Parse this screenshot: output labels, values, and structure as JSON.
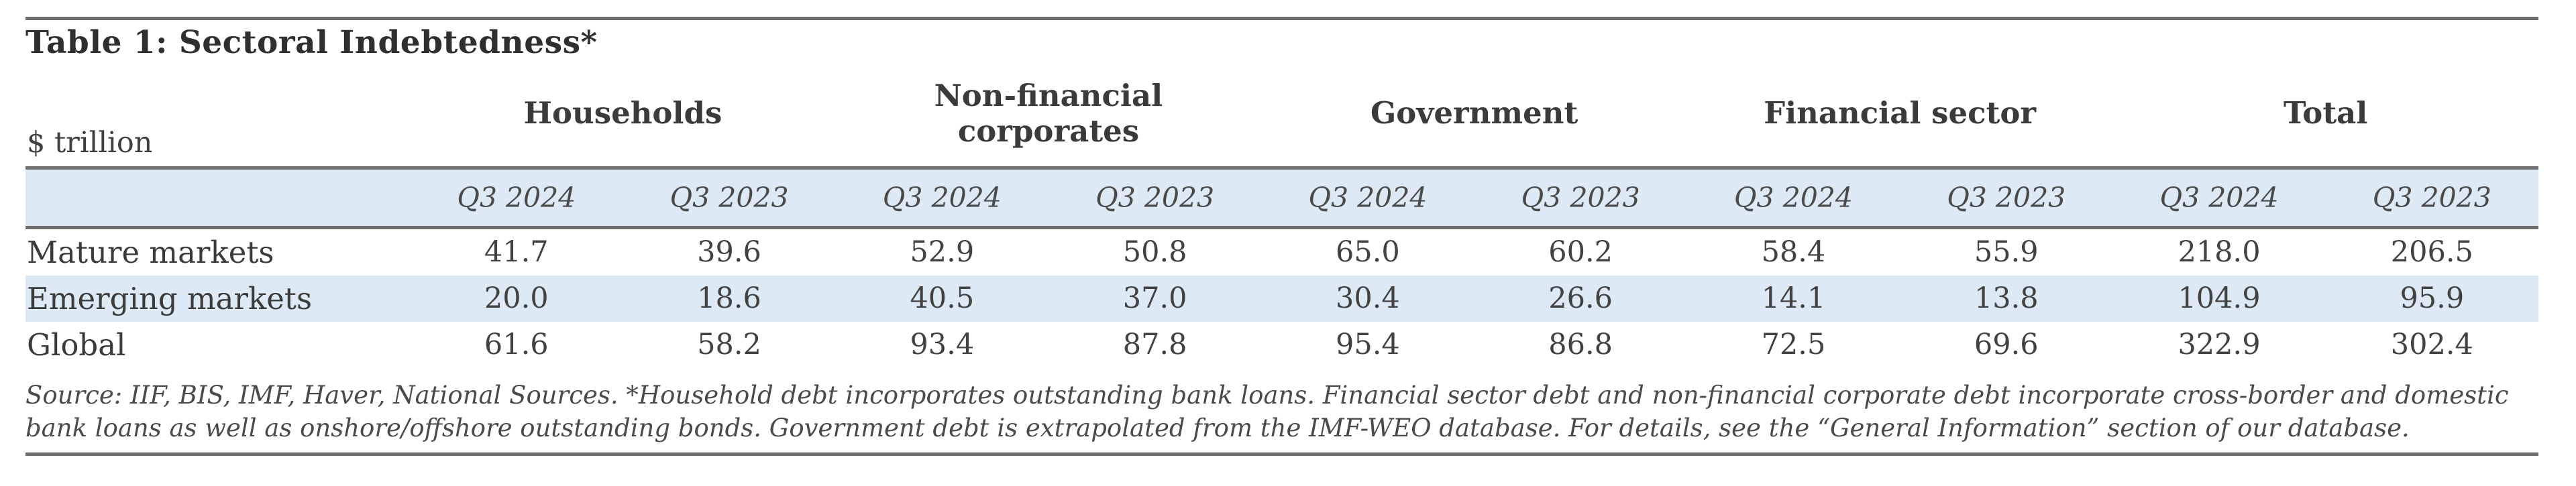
{
  "title": "Table 1: Sectoral Indebtedness*",
  "unit_label": "$ trillion",
  "column_groups": [
    "Households",
    "Non-financial corporates",
    "Government",
    "Financial sector",
    "Total"
  ],
  "period_labels": [
    "Q3 2024",
    "Q3 2023",
    "Q3 2024",
    "Q3 2023",
    "Q3 2024",
    "Q3 2023",
    "Q3 2024",
    "Q3 2023",
    "Q3 2024",
    "Q3 2023"
  ],
  "rows": [
    {
      "label": "Mature markets",
      "values": [
        "41.7",
        "39.6",
        "52.9",
        "50.8",
        "65.0",
        "60.2",
        "58.4",
        "55.9",
        "218.0",
        "206.5"
      ]
    },
    {
      "label": "Emerging markets",
      "values": [
        "20.0",
        "18.6",
        "40.5",
        "37.0",
        "30.4",
        "26.6",
        "14.1",
        "13.8",
        "104.9",
        "95.9"
      ]
    },
    {
      "label": "Global",
      "values": [
        "61.6",
        "58.2",
        "93.4",
        "87.8",
        "95.4",
        "86.8",
        "72.5",
        "69.6",
        "322.9",
        "302.4"
      ]
    }
  ],
  "footnote_lines": [
    "Source: IIF, BIS, IMF, Haver, National Sources. *Household debt incorporates outstanding bank loans. Financial sector debt and non-financial corporate debt incorporate cross-border and domestic",
    "bank loans as well as onshore/offshore outstanding bonds. Government debt is extrapolated from the IMF-WEO database. For details, see the “General Information” section of our database."
  ],
  "colors": {
    "band_blue": "#ddeaf6",
    "rule_gray": "#6e6e6e",
    "text_gray": "#424242",
    "title_gray": "#2f2f2f"
  }
}
